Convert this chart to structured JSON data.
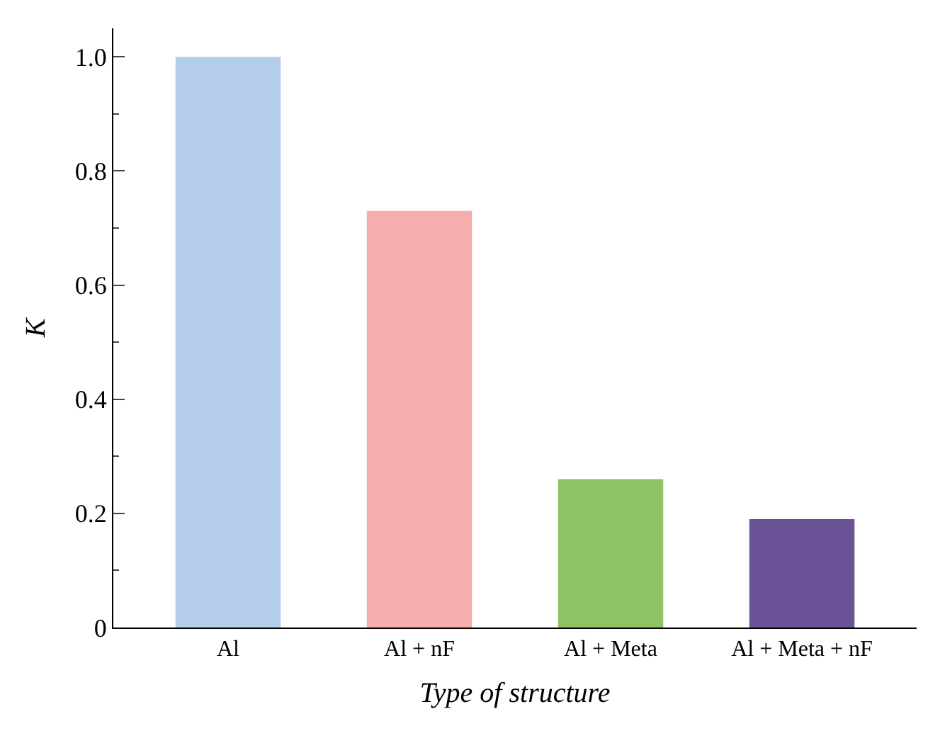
{
  "chart_data": {
    "type": "bar",
    "xlabel": "Type of structure",
    "ylabel": "K",
    "categories": [
      "Al",
      "Al + nF",
      "Al + Meta",
      "Al + Meta + nF"
    ],
    "values": [
      1.0,
      0.73,
      0.26,
      0.19
    ],
    "colors": [
      "#b3cdea",
      "#f5aeac",
      "#8fc166",
      "#6b5196"
    ],
    "ylim": [
      0,
      1.05
    ],
    "yticks": [
      {
        "value": 0,
        "label": "0"
      },
      0.2,
      0.4,
      0.6,
      0.8,
      {
        "value": 1.0,
        "label": "1.0"
      }
    ]
  }
}
